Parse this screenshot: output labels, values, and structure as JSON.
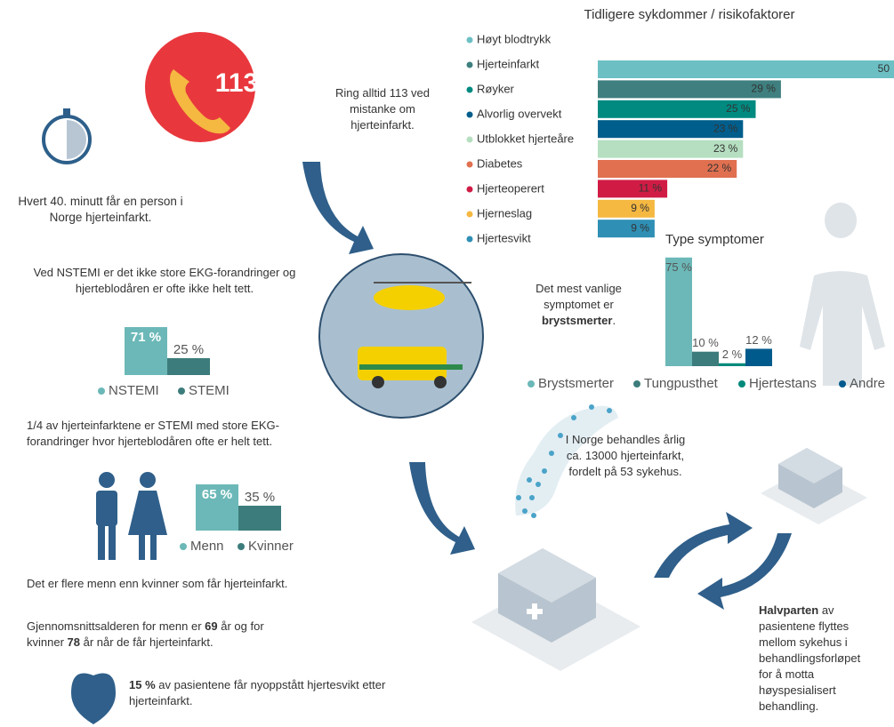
{
  "chart_data": [
    {
      "type": "bar",
      "orientation": "horizontal",
      "title": "Tidligere sykdommer / risikofaktorer",
      "categories": [
        "Høyt blodtrykk",
        "Hjerteinfarkt",
        "Røyker",
        "Alvorlig overvekt",
        "Utblokket hjerteåre",
        "Diabetes",
        "Hjerteoperert",
        "Hjerneslag",
        "Hjertesvikt"
      ],
      "values": [
        50,
        29,
        25,
        23,
        23,
        22,
        11,
        9,
        9
      ],
      "value_labels": [
        "50",
        "29 %",
        "25 %",
        "23 %",
        "23 %",
        "22 %",
        "11 %",
        "9 %",
        "9 %"
      ],
      "colors": [
        "#6cc0c4",
        "#3f7f7f",
        "#008a80",
        "#005e8c",
        "#b5dfc0",
        "#e07050",
        "#d01c45",
        "#f5b841",
        "#2f8fb5"
      ]
    },
    {
      "type": "bar",
      "title": "Type symptomer",
      "categories": [
        "Brystsmerter",
        "Tungpusthet",
        "Hjertestans",
        "Andre"
      ],
      "values": [
        75,
        10,
        2,
        12
      ],
      "value_labels": [
        "75 %",
        "10 %",
        "2 %",
        "12 %"
      ],
      "colors": [
        "#6cb8b8",
        "#3d7c7c",
        "#00897b",
        "#005b8c"
      ]
    },
    {
      "type": "bar",
      "categories": [
        "NSTEMI",
        "STEMI"
      ],
      "values": [
        71,
        25
      ],
      "value_labels": [
        "71 %",
        "25 %"
      ],
      "colors": [
        "#6cb8b8",
        "#3d7c7c"
      ]
    },
    {
      "type": "bar",
      "categories": [
        "Menn",
        "Kvinner"
      ],
      "values": [
        65,
        35
      ],
      "value_labels": [
        "65 %",
        "35 %"
      ],
      "colors": [
        "#6cb8b8",
        "#3d7c7c"
      ]
    }
  ],
  "texts": {
    "phone_number": "113",
    "call": "Ring alltid 113 ved mistanke om hjerteinfarkt.",
    "every40": "Hvert 40. minutt får en person i Norge hjerteinfarkt.",
    "nstemi": "Ved NSTEMI er det ikke store EKG-forandringer og hjerteblodåren er ofte ikke helt tett.",
    "stemi": "1/4 av hjerteinfarktene er STEMI med store EKG-forandringer hvor hjerteblodåren ofte er helt tett.",
    "men": "Det er flere menn enn kvinner som får hjerteinfarkt.",
    "age": [
      "Gjennomsnittsalderen for menn er ",
      "69",
      " år og for kvinner ",
      "78",
      " år når de får hjerteinfarkt."
    ],
    "failure": [
      "15 %",
      " av pasientene får nyoppstått hjertesvikt etter hjerteinfarkt."
    ],
    "symptom": [
      "Det mest vanlige symptomet er ",
      "brystsmerter",
      "."
    ],
    "norway": "I Norge behandles årlig ca. 13000 hjerteinfarkt, fordelt på 53 sykehus.",
    "transfer": [
      "Halvparten",
      " av pasientene flyttes mellom sykehus i behandlingsforløpet for å motta høyspesialisert behandling."
    ]
  }
}
